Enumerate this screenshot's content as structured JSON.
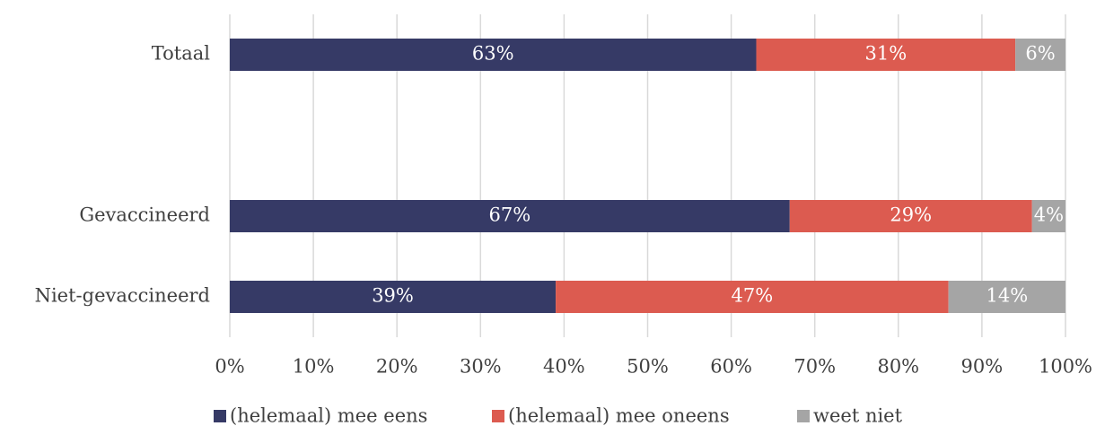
{
  "chart_data": {
    "type": "stacked-bar-horizontal",
    "categories": [
      "Totaal",
      null,
      "Gevaccineerd",
      "Niet-gevaccineerd"
    ],
    "series": [
      {
        "name": "(helemaal) mee eens",
        "color": "#363a66",
        "values": [
          63,
          null,
          67,
          39
        ],
        "value_labels": [
          "63%",
          null,
          "67%",
          "39%"
        ]
      },
      {
        "name": "(helemaal) mee oneens",
        "color": "#dc5b50",
        "values": [
          31,
          null,
          29,
          47
        ],
        "value_labels": [
          "31%",
          null,
          "29%",
          "47%"
        ]
      },
      {
        "name": "weet niet",
        "color": "#a5a5a5",
        "values": [
          6,
          null,
          4,
          14
        ],
        "value_labels": [
          "6%",
          null,
          "4%",
          "14%"
        ]
      }
    ],
    "xlim": [
      0,
      100
    ],
    "xticks": [
      {
        "value": 0,
        "label": "0%"
      },
      {
        "value": 10,
        "label": "10%"
      },
      {
        "value": 20,
        "label": "20%"
      },
      {
        "value": 30,
        "label": "30%"
      },
      {
        "value": 40,
        "label": "40%"
      },
      {
        "value": 50,
        "label": "50%"
      },
      {
        "value": 60,
        "label": "60%"
      },
      {
        "value": 70,
        "label": "70%"
      },
      {
        "value": 80,
        "label": "80%"
      },
      {
        "value": 90,
        "label": "90%"
      },
      {
        "value": 100,
        "label": "100%"
      }
    ],
    "grid": true,
    "legend": "bottom"
  }
}
